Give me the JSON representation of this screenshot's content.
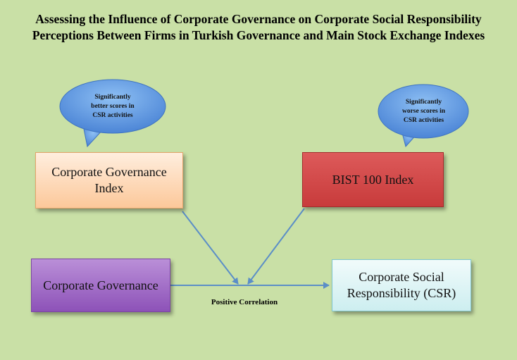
{
  "title": {
    "line1": "Assessing the Influence of Corporate Governance on Corporate Social Responsibility",
    "line2": "Perceptions Between Firms in Turkish Governance and Main Stock Exchange Indexes"
  },
  "nodes": {
    "cg_index": {
      "line1": "Corporate Governance",
      "line2": "Index",
      "color": "#fcd4ad"
    },
    "bist100": {
      "label": "BIST 100 Index",
      "color": "#d24a4a"
    },
    "corporate_governance": {
      "label": "Corporate Governance",
      "color": "#a470c8"
    },
    "csr": {
      "line1": "Corporate Social",
      "line2": "Responsibility (CSR)",
      "color": "#dff4f5"
    }
  },
  "callouts": {
    "better": {
      "line1": "Significantly",
      "line2": "better scores in",
      "line3": "CSR activities"
    },
    "worse": {
      "line1": "Significantly",
      "line2": "worse scores in",
      "line3": "CSR activities"
    }
  },
  "edge_label": "Positive Correlation",
  "colors": {
    "background": "#c9e0a6",
    "arrow": "#5b8ec7",
    "bubble": "#5b93de"
  }
}
